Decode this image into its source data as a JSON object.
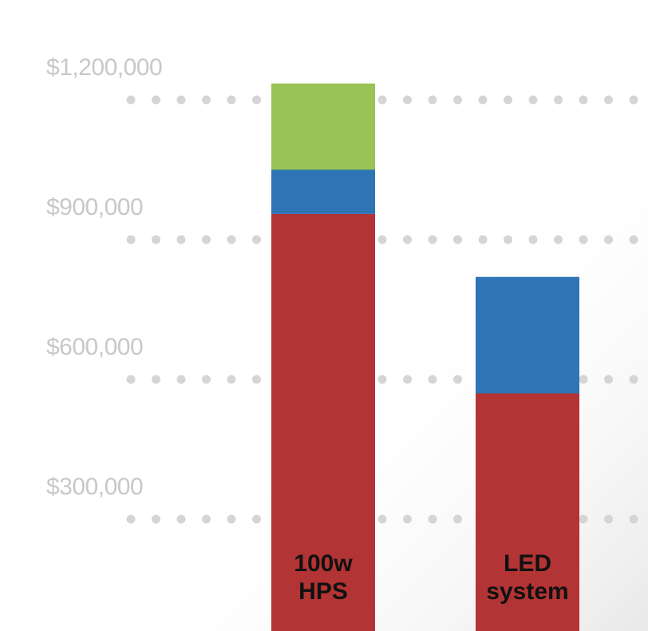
{
  "chart_data": {
    "type": "bar",
    "stacked": true,
    "categories": [
      [
        "100w",
        "HPS"
      ],
      [
        "LED",
        "system"
      ]
    ],
    "series": [
      {
        "color": "#b33434",
        "values": [
          955000,
          570000
        ]
      },
      {
        "color": "#2e75b6",
        "values": [
          95000,
          250000
        ]
      },
      {
        "color": "#98c455",
        "values": [
          185000,
          0
        ]
      }
    ],
    "yticks": [
      {
        "value": 300000,
        "label": "$300,000"
      },
      {
        "value": 600000,
        "label": "$600,000"
      },
      {
        "value": 900000,
        "label": "$900,000"
      },
      {
        "value": 1200000,
        "label": "$1,200,000"
      }
    ],
    "ylim": [
      0,
      1200000
    ],
    "grid": "dotted",
    "legend": "none"
  },
  "colors": {
    "tick_text": "#c8c8c8",
    "grid_dots": "#d5d5d5",
    "category_text": "#111111"
  }
}
